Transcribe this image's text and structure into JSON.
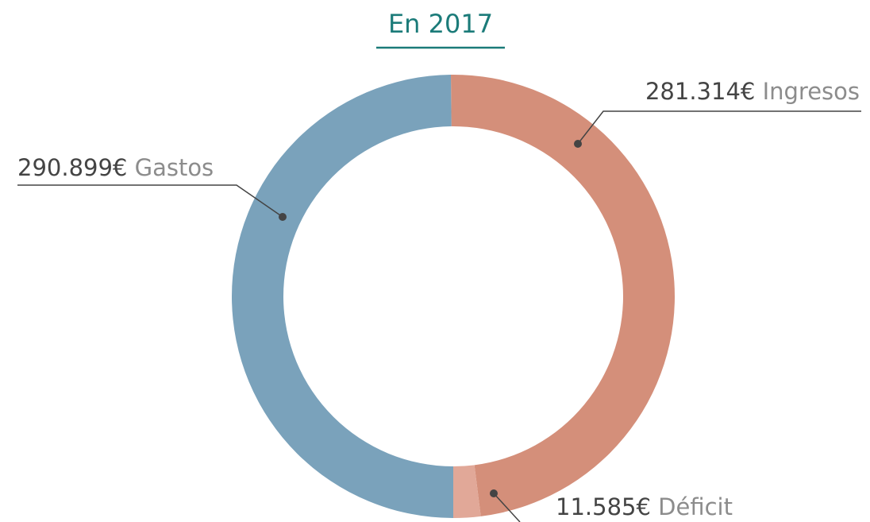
{
  "chart_data": {
    "type": "donut",
    "title": "En 2017",
    "categories": [
      "Ingresos",
      "Déficit",
      "Gastos"
    ],
    "values": [
      281314,
      11585,
      290899
    ],
    "value_labels": [
      "281.314€",
      "11.585€",
      "290.899€"
    ],
    "colors": [
      "#d48f7a",
      "#e1a898",
      "#7aa2bb"
    ]
  }
}
